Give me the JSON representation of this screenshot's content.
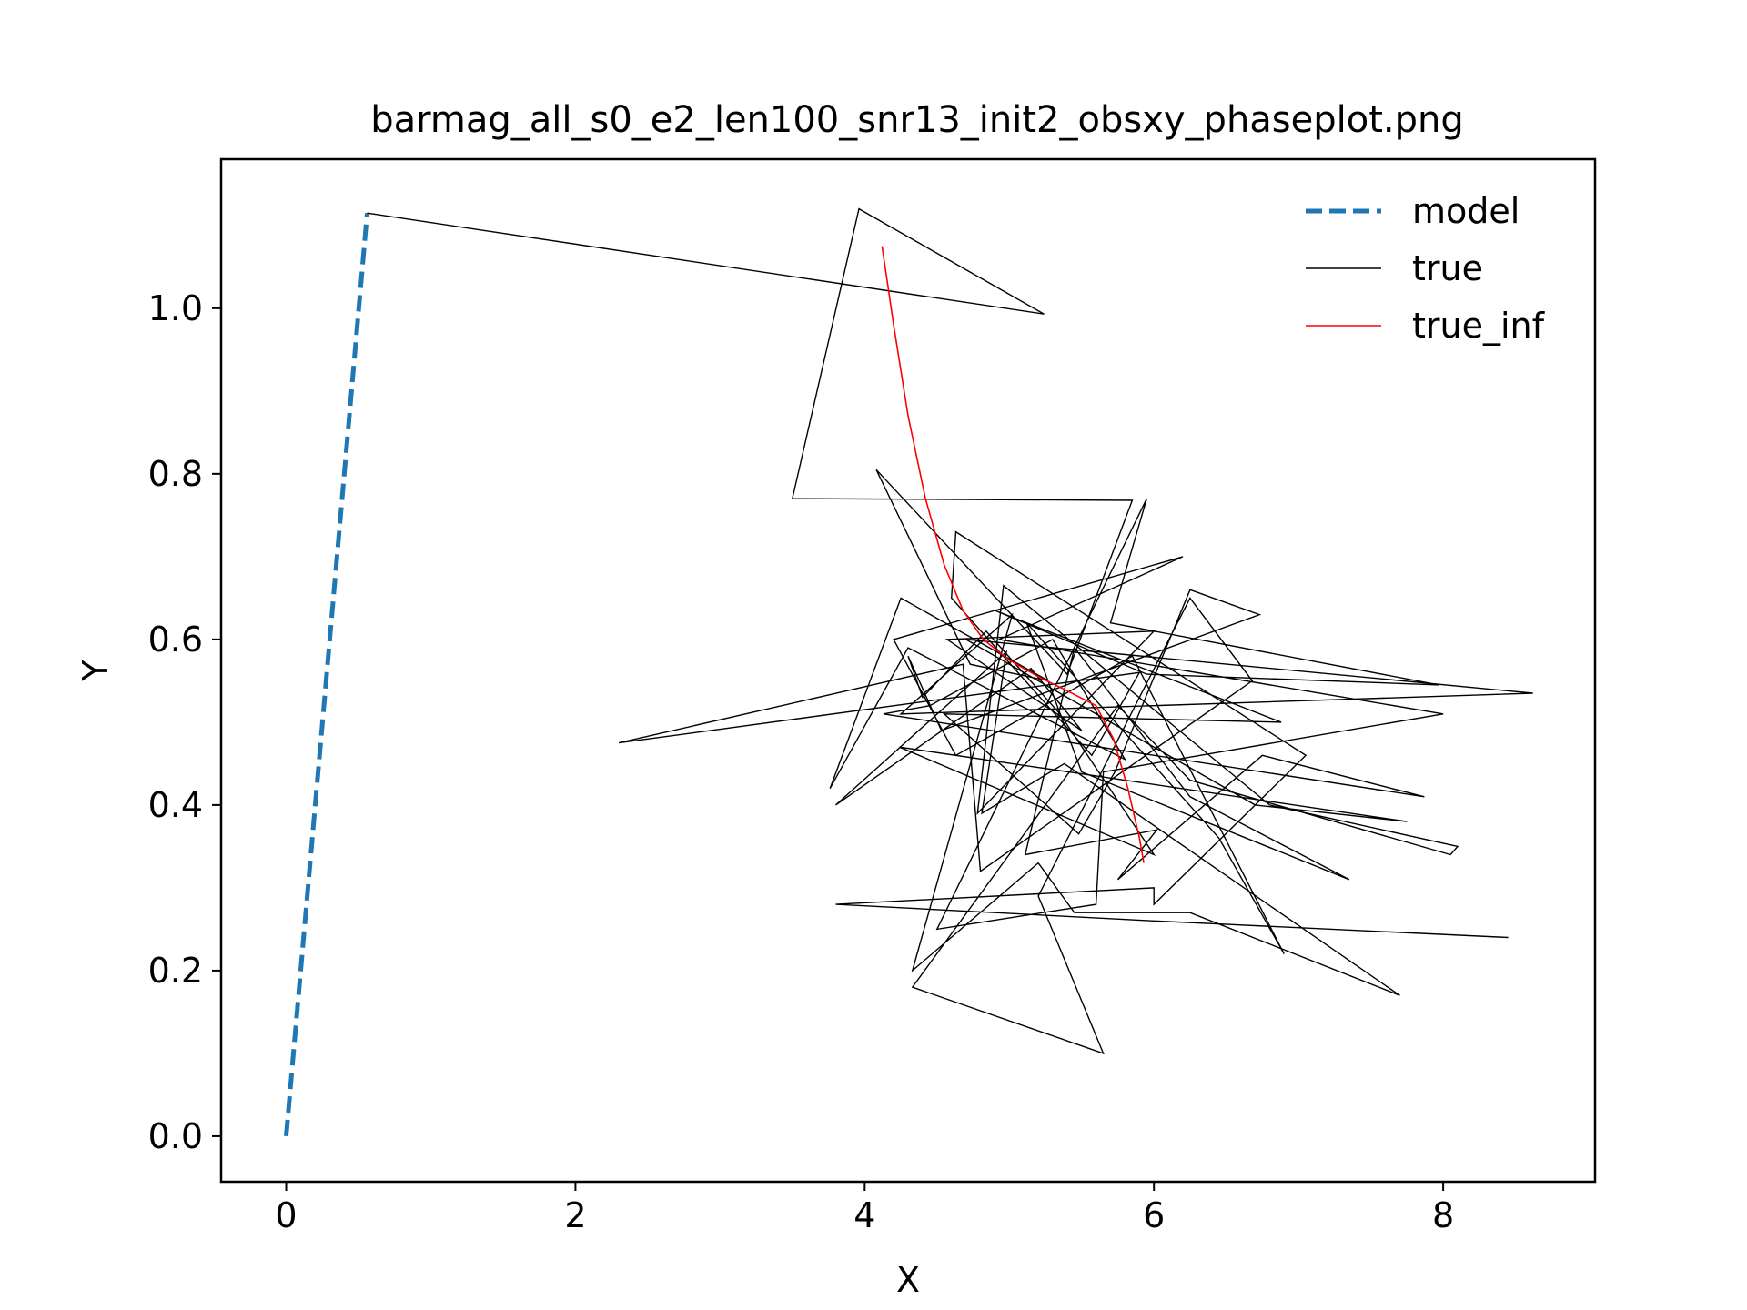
{
  "chart_data": {
    "type": "line",
    "title": "barmag_all_s0_e2_len100_snr13_init2_obsxy_phaseplot.png",
    "xlabel": "X",
    "ylabel": "Y",
    "xlim": [
      -0.45,
      9.05
    ],
    "ylim": [
      -0.055,
      1.18
    ],
    "xticks": [
      0,
      2,
      4,
      6,
      8
    ],
    "xtick_labels": [
      "0",
      "2",
      "4",
      "6",
      "8"
    ],
    "yticks": [
      0.0,
      0.2,
      0.4,
      0.6,
      0.8,
      1.0
    ],
    "ytick_labels": [
      "0.0",
      "0.2",
      "0.4",
      "0.6",
      "0.8",
      "1.0"
    ],
    "grid": false,
    "legend_position": "top-right",
    "series": [
      {
        "name": "model",
        "color": "#1f77b4",
        "style": "dashed",
        "points": [
          [
            0.0,
            0.0
          ],
          [
            0.56,
            1.115
          ]
        ]
      },
      {
        "name": "true",
        "color": "#000000",
        "style": "solid",
        "points": [
          [
            0.56,
            1.115
          ],
          [
            5.24,
            0.993
          ],
          [
            3.96,
            1.12
          ],
          [
            3.5,
            0.77
          ],
          [
            5.85,
            0.768
          ],
          [
            5.4,
            0.558
          ],
          [
            4.08,
            0.805
          ],
          [
            4.73,
            0.57
          ],
          [
            5.27,
            0.55
          ],
          [
            4.25,
            0.65
          ],
          [
            3.76,
            0.42
          ],
          [
            4.3,
            0.59
          ],
          [
            5.8,
            0.455
          ],
          [
            5.3,
            0.6
          ],
          [
            4.45,
            0.52
          ],
          [
            4.13,
            0.51
          ],
          [
            7.87,
            0.41
          ],
          [
            6.75,
            0.46
          ],
          [
            5.75,
            0.31
          ],
          [
            6.02,
            0.37
          ],
          [
            5.11,
            0.34
          ],
          [
            5.45,
            0.59
          ],
          [
            6.25,
            0.41
          ],
          [
            7.35,
            0.31
          ],
          [
            5.5,
            0.44
          ],
          [
            5.12,
            0.62
          ],
          [
            6.45,
            0.36
          ],
          [
            6.9,
            0.22
          ],
          [
            5.85,
            0.58
          ],
          [
            4.63,
            0.46
          ],
          [
            4.2,
            0.6
          ],
          [
            6.2,
            0.7
          ],
          [
            4.93,
            0.6
          ],
          [
            8.0,
            0.51
          ],
          [
            5.65,
            0.44
          ],
          [
            5.6,
            0.28
          ],
          [
            4.5,
            0.25
          ],
          [
            5.95,
            0.77
          ],
          [
            5.7,
            0.62
          ],
          [
            7.97,
            0.545
          ],
          [
            5.95,
            0.558
          ],
          [
            4.9,
            0.635
          ],
          [
            6.88,
            0.5
          ],
          [
            4.55,
            0.51
          ],
          [
            5.48,
            0.365
          ],
          [
            5.73,
            0.44
          ],
          [
            6.25,
            0.66
          ],
          [
            6.73,
            0.63
          ],
          [
            4.53,
            0.49
          ],
          [
            4.3,
            0.58
          ],
          [
            4.4,
            0.53
          ],
          [
            4.84,
            0.61
          ],
          [
            5.35,
            0.51
          ],
          [
            6.0,
            0.34
          ],
          [
            4.24,
            0.47
          ],
          [
            7.75,
            0.38
          ],
          [
            6.7,
            0.4
          ],
          [
            4.7,
            0.6
          ],
          [
            8.62,
            0.535
          ],
          [
            4.25,
            0.51
          ],
          [
            5.02,
            0.63
          ],
          [
            4.33,
            0.2
          ],
          [
            5.2,
            0.33
          ],
          [
            5.45,
            0.27
          ],
          [
            6.25,
            0.27
          ],
          [
            7.7,
            0.17
          ],
          [
            5.38,
            0.45
          ],
          [
            4.81,
            0.39
          ],
          [
            4.98,
            0.585
          ],
          [
            3.8,
            0.4
          ],
          [
            5.15,
            0.565
          ],
          [
            5.5,
            0.49
          ],
          [
            4.57,
            0.6
          ],
          [
            6.0,
            0.61
          ],
          [
            4.78,
            0.39
          ],
          [
            4.96,
            0.665
          ],
          [
            6.8,
            0.4
          ],
          [
            8.1,
            0.35
          ],
          [
            8.05,
            0.34
          ],
          [
            6.25,
            0.43
          ],
          [
            5.75,
            0.52
          ],
          [
            4.33,
            0.18
          ],
          [
            5.65,
            0.1
          ],
          [
            5.2,
            0.29
          ],
          [
            6.25,
            0.65
          ],
          [
            6.68,
            0.55
          ],
          [
            4.8,
            0.32
          ],
          [
            4.68,
            0.57
          ],
          [
            2.3,
            0.475
          ],
          [
            5.9,
            0.56
          ],
          [
            5.57,
            0.46
          ],
          [
            4.6,
            0.65
          ],
          [
            4.63,
            0.73
          ],
          [
            7.05,
            0.46
          ],
          [
            6.0,
            0.28
          ],
          [
            6.0,
            0.3
          ],
          [
            3.8,
            0.28
          ],
          [
            6.0,
            0.26
          ],
          [
            8.45,
            0.24
          ]
        ]
      },
      {
        "name": "true_inf",
        "color": "#ff0000",
        "style": "solid",
        "points": [
          [
            4.12,
            1.075
          ],
          [
            4.2,
            0.98
          ],
          [
            4.3,
            0.87
          ],
          [
            4.42,
            0.77
          ],
          [
            4.55,
            0.69
          ],
          [
            4.68,
            0.635
          ],
          [
            4.82,
            0.6
          ],
          [
            5.0,
            0.575
          ],
          [
            5.2,
            0.555
          ],
          [
            5.4,
            0.538
          ],
          [
            5.6,
            0.52
          ],
          [
            5.72,
            0.48
          ],
          [
            5.82,
            0.42
          ],
          [
            5.9,
            0.36
          ],
          [
            5.93,
            0.33
          ]
        ]
      }
    ]
  }
}
